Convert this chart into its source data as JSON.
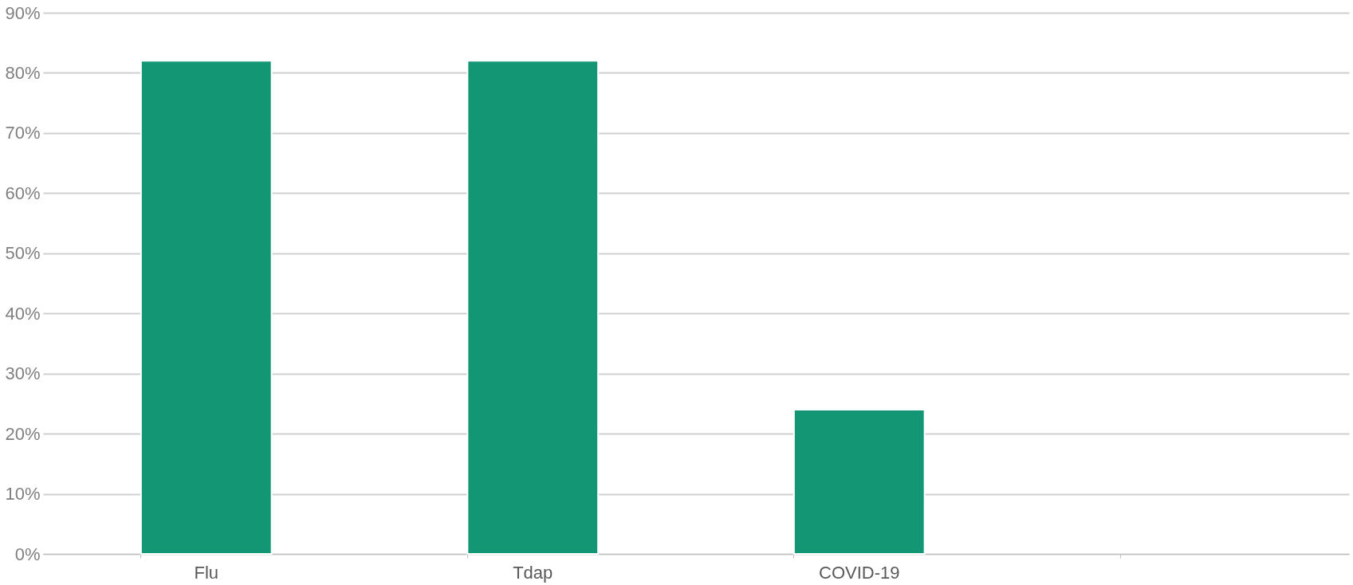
{
  "chart_data": {
    "type": "bar",
    "categories": [
      "Flu",
      "Tdap",
      "COVID-19",
      null
    ],
    "values": [
      82,
      82,
      24,
      null
    ],
    "color": "#129673",
    "ylim": [
      0,
      90
    ],
    "yticks": [
      {
        "value": 0,
        "label": "0%"
      },
      {
        "value": 10,
        "label": "10%"
      },
      {
        "value": 20,
        "label": "20%"
      },
      {
        "value": 30,
        "label": "30%"
      },
      {
        "value": 40,
        "label": "40%"
      },
      {
        "value": 50,
        "label": "50%"
      },
      {
        "value": 60,
        "label": "60%"
      },
      {
        "value": 70,
        "label": "70%"
      },
      {
        "value": 80,
        "label": "80%"
      },
      {
        "value": 90,
        "label": "90%"
      }
    ],
    "grid": "y"
  }
}
